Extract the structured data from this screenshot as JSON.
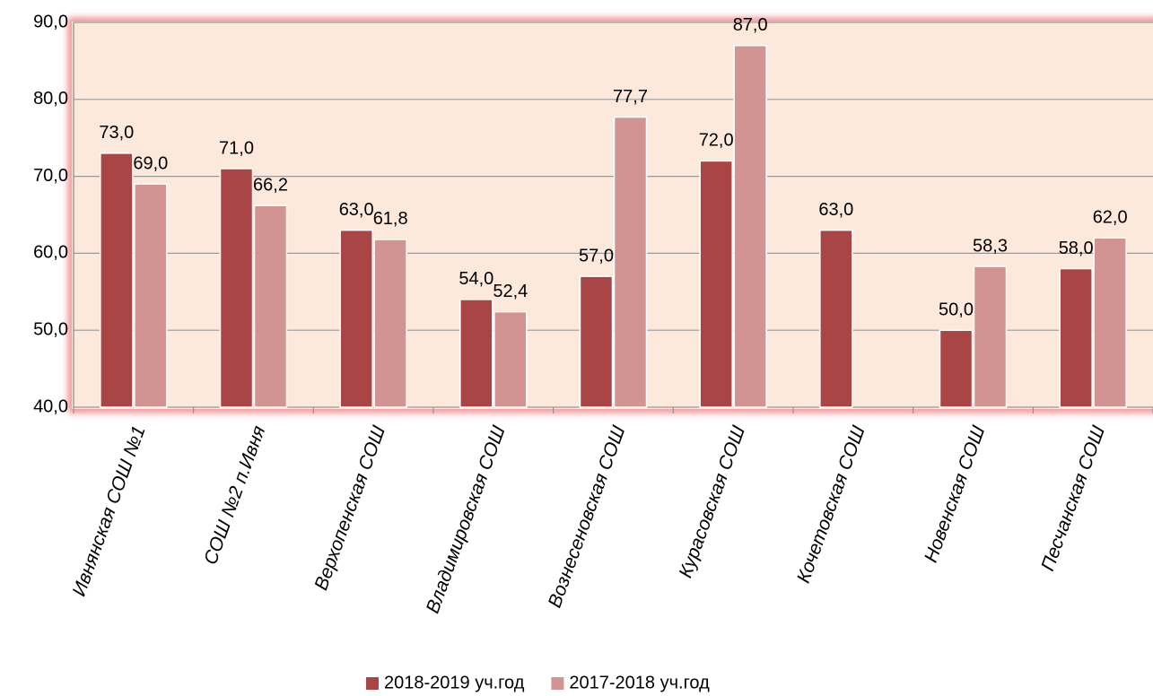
{
  "chart_data": {
    "type": "bar",
    "categories": [
      "Ивнянская СОШ №1",
      "СОШ №2 п.Ивня",
      "Верхопенская СОШ",
      "Владимировская СОШ",
      "Вознесеновская СОШ",
      "Курасовская СОШ",
      "Кочетовская СОШ",
      "Новенская СОШ",
      "Песчанская СОШ"
    ],
    "series": [
      {
        "name": "2018-2019 уч.год",
        "color": "#a94545",
        "values": [
          73,
          71,
          63,
          54,
          57,
          72,
          63,
          50,
          58
        ],
        "value_labels": [
          "73,0",
          "71,0",
          "63,0",
          "54,0",
          "57,0",
          "72,0",
          "63,0",
          "50,0",
          "58,0"
        ]
      },
      {
        "name": "2017-2018 уч.год",
        "color": "#d29393",
        "values": [
          69,
          66.2,
          61.8,
          52.4,
          77.7,
          87,
          null,
          58.3,
          62
        ],
        "value_labels": [
          "69,0",
          "66,2",
          "61,8",
          "52,4",
          "77,7",
          "87,0",
          null,
          "58,3",
          "62,0"
        ]
      }
    ],
    "ylim": [
      40,
      90
    ],
    "yticks": [
      {
        "value": 40,
        "label": "40,0"
      },
      {
        "value": 50,
        "label": "50,0"
      },
      {
        "value": 60,
        "label": "60,0"
      },
      {
        "value": 70,
        "label": "70,0"
      },
      {
        "value": 80,
        "label": "80,0"
      },
      {
        "value": 90,
        "label": "90,0"
      }
    ],
    "grid": true,
    "legend": "bottom"
  }
}
